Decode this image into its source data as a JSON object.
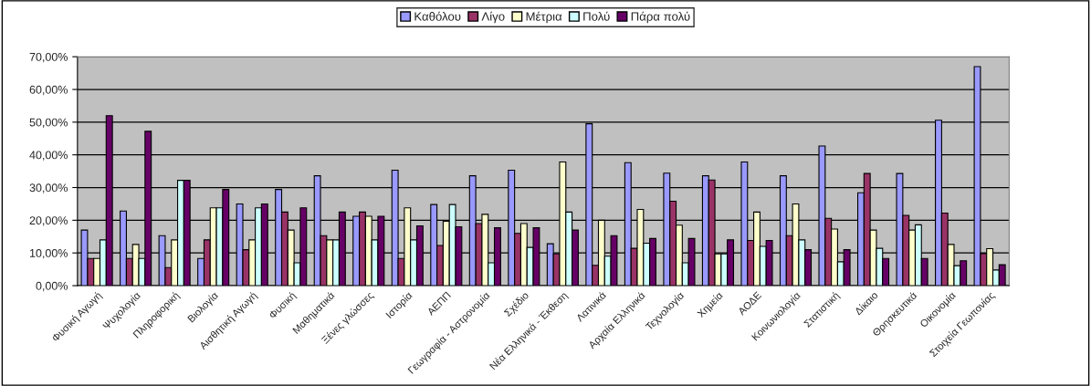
{
  "chart_data": {
    "type": "bar",
    "categories": [
      "Φυσική Αγωγή",
      "Ψυχολογία",
      "Πληροφορική",
      "Βιολογία",
      "Αισθητική Αγωγή",
      "Φυσική",
      "Μαθηματικά",
      "Ξένες γλώσσες",
      "Ιστορία",
      "ΑΕΠΠ",
      "Γεωγραφία - Αστρονομία",
      "Σχέδιο",
      "Νέα Ελληνικά - Έκθεση",
      "Λατινικά",
      "Αρχαία Ελληνικά",
      "Τεχνολογία",
      "Χημεία",
      "ΑΟΔΕ",
      "Κοινωνιολογία",
      "Στατιστική",
      "Δίκαιο",
      "Θρησκευτικά",
      "Οικονομία",
      "Στοιχεία Γεωπονίας"
    ],
    "series": [
      {
        "name": "Καθόλου",
        "color": "#9999ff",
        "values": [
          17,
          22.8,
          15.3,
          8.3,
          25,
          29.4,
          33.6,
          21.2,
          35.3,
          24.8,
          33.6,
          35.3,
          12.8,
          49.5,
          37.6,
          34.4,
          33.6,
          37.8,
          33.6,
          42.7,
          28.4,
          34.3,
          50.6,
          67
        ]
      },
      {
        "name": "Λίγο",
        "color": "#993366",
        "values": [
          8.3,
          8.3,
          5.5,
          14,
          11,
          22.5,
          15.3,
          22.5,
          8.3,
          12.3,
          19,
          16,
          9.7,
          6.2,
          11.4,
          25.8,
          32.3,
          13.8,
          15.3,
          20.6,
          34.3,
          21.5,
          22.2,
          9.8
        ]
      },
      {
        "name": "Μέτρια",
        "color": "#ffffcc",
        "values": [
          8.3,
          12.6,
          14,
          23.8,
          14,
          17,
          14,
          21.2,
          23.8,
          19.7,
          21.8,
          19,
          37.8,
          20,
          23.3,
          18.5,
          9.7,
          22.5,
          25,
          17.3,
          17,
          17,
          12.6,
          11.3
        ]
      },
      {
        "name": "Πολύ",
        "color": "#ccffff",
        "values": [
          14,
          8.3,
          32.2,
          23.8,
          23.8,
          7,
          14,
          14,
          14,
          24.8,
          7,
          11.7,
          22.5,
          9,
          13,
          7,
          9.7,
          12,
          14,
          7.3,
          11.4,
          18.6,
          6.1,
          4.8
        ]
      },
      {
        "name": "Πάρα πολύ",
        "color": "#660066",
        "values": [
          52,
          47.2,
          32.2,
          29.4,
          25,
          23.8,
          22.5,
          21.2,
          18.3,
          18,
          17.7,
          17.7,
          17,
          15.3,
          14.4,
          14.4,
          14,
          13.8,
          11,
          11,
          8.3,
          8.3,
          7.6,
          6.4
        ]
      }
    ],
    "ylim": [
      0,
      70
    ],
    "yticks": [
      {
        "value": 0,
        "label": "0,00%"
      },
      {
        "value": 10,
        "label": "10,00%"
      },
      {
        "value": 20,
        "label": "20,00%"
      },
      {
        "value": 30,
        "label": "30,00%"
      },
      {
        "value": 40,
        "label": "40,00%"
      },
      {
        "value": 50,
        "label": "50,00%"
      },
      {
        "value": 60,
        "label": "60,00%"
      },
      {
        "value": 70,
        "label": "70,00%"
      }
    ],
    "grid": "y",
    "legend": "top"
  }
}
